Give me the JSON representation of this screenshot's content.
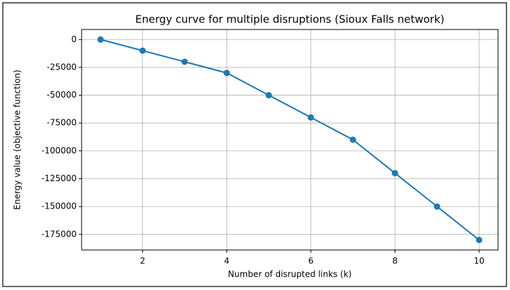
{
  "chart_data": {
    "type": "line",
    "title": "Energy curve for multiple disruptions (Sioux Falls network)",
    "x_label": "Number of disrupted links (k)",
    "y_label": "Energy value (objective function)",
    "x": [
      1,
      2,
      3,
      4,
      5,
      6,
      7,
      8,
      9,
      10
    ],
    "series": [
      {
        "color": "#1f77b4",
        "values": [
          0,
          -10000,
          -20000,
          -30000,
          -50000,
          -70000,
          -90000,
          -120000,
          -150000,
          -180000
        ]
      }
    ],
    "xlim": [
      0.55,
      10.45
    ],
    "xticks": [
      2,
      4,
      6,
      8,
      10
    ],
    "ylim": [
      -189000,
      9000
    ],
    "yticks": [
      0,
      -25000,
      -50000,
      -75000,
      -100000,
      -125000,
      -150000,
      -175000
    ],
    "grid": true,
    "markers": true
  }
}
